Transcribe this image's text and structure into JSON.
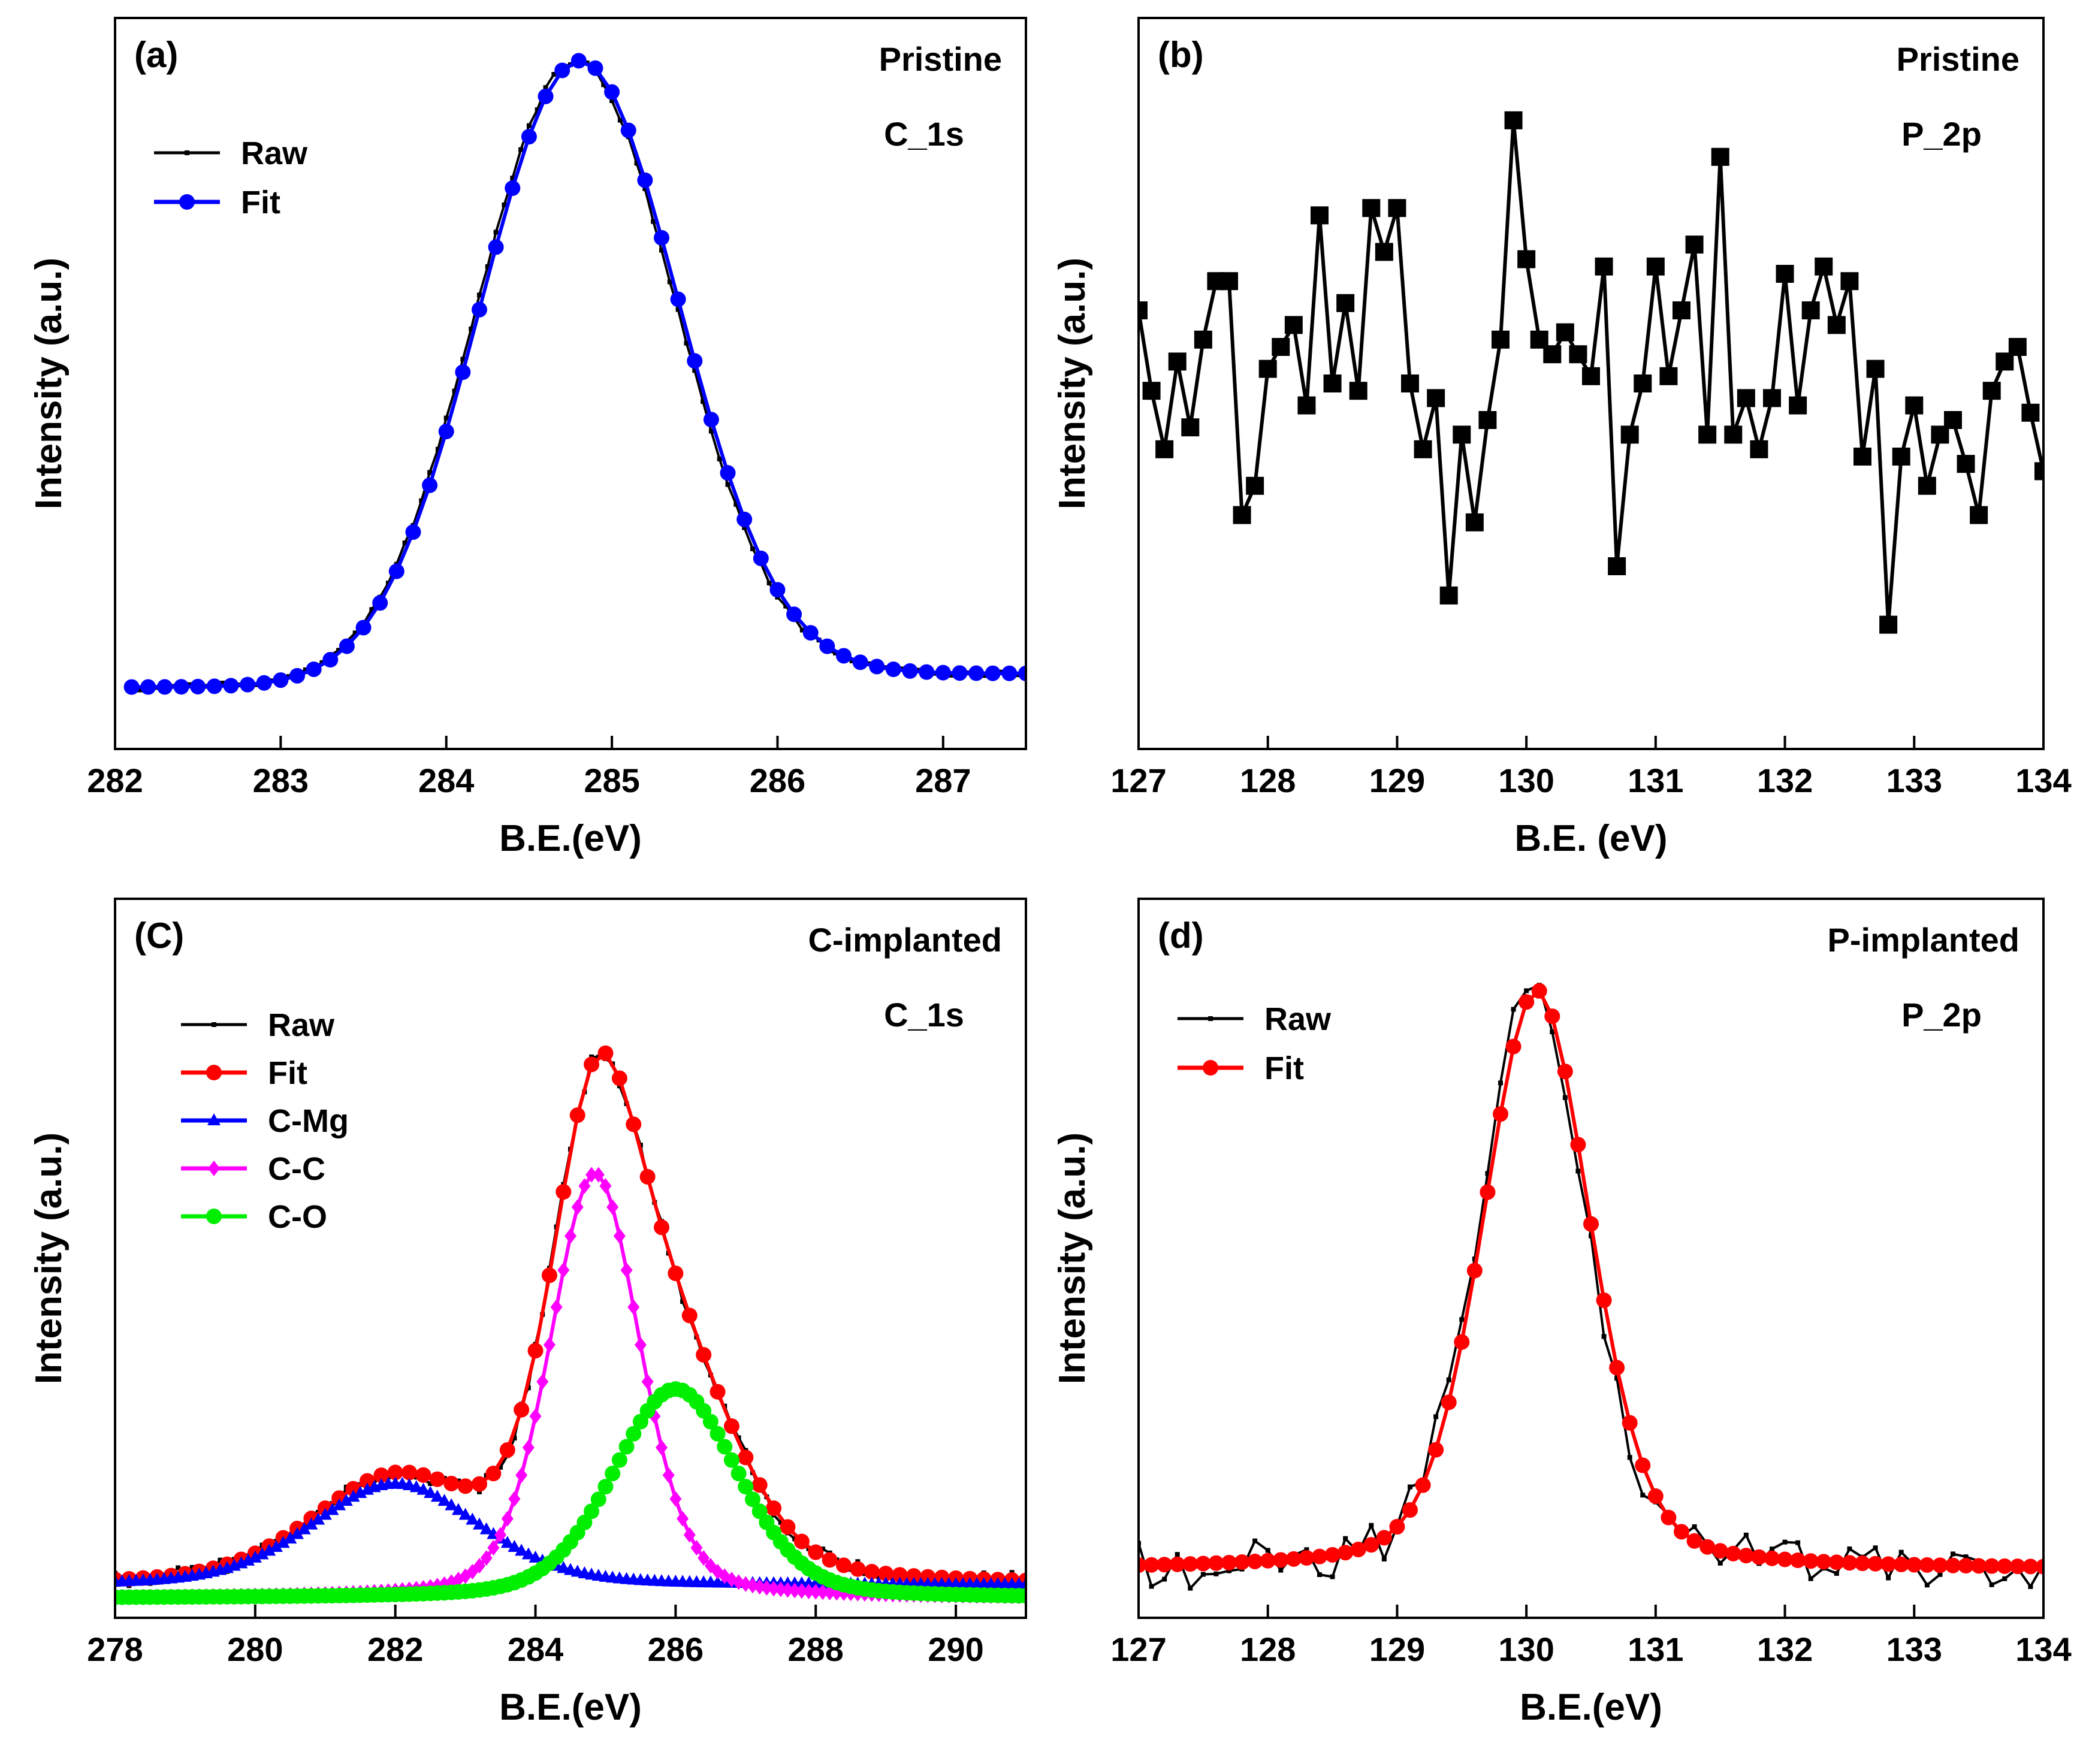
{
  "figure": {
    "background": "#ffffff"
  },
  "chart_data": [
    {
      "id": "a",
      "type": "line",
      "panel_label": "(a)",
      "annotations": [
        "Pristine",
        "C_1s"
      ],
      "xlabel": "B.E.(eV)",
      "ylabel": "Intensity (a.u.)",
      "xlim": [
        282.0,
        287.5
      ],
      "ylim": [
        -0.1,
        1.08
      ],
      "xticks": [
        282,
        283,
        284,
        285,
        286,
        287
      ],
      "xtick_labels": [
        "282",
        "283",
        "284",
        "285",
        "286",
        "287"
      ],
      "y_tick_labels": false,
      "legend": {
        "position": "top-left",
        "entries": [
          "Raw",
          "Fit"
        ]
      },
      "series": [
        {
          "name": "Raw",
          "color": "#000000",
          "marker": "small-square",
          "generator": "gauss",
          "params": {
            "center": 284.78,
            "sigma": 0.6,
            "amp": 1.0,
            "base": 0.0,
            "base_slope": 0.022
          },
          "noise": 0.005,
          "x_start": 282.1,
          "x_end": 287.5,
          "step": 0.05
        },
        {
          "name": "Fit",
          "color": "#0000ff",
          "marker": "circle",
          "generator": "gauss",
          "params": {
            "center": 284.8,
            "sigma": 0.6,
            "amp": 1.0,
            "base": 0.0,
            "base_slope": 0.022
          },
          "x_start": 282.1,
          "x_end": 287.5,
          "step": 0.1
        }
      ]
    },
    {
      "id": "b",
      "type": "line",
      "panel_label": "(b)",
      "annotations": [
        "Pristine",
        "P_2p"
      ],
      "xlabel": "B.E. (eV)",
      "ylabel": "Intensity (a.u.)",
      "xlim": [
        127,
        134
      ],
      "ylim": [
        0,
        1
      ],
      "xticks": [
        127,
        128,
        129,
        130,
        131,
        132,
        133,
        134
      ],
      "xtick_labels": [
        "127",
        "128",
        "129",
        "130",
        "131",
        "132",
        "133",
        "134"
      ],
      "y_tick_labels": false,
      "series": [
        {
          "name": "P_2p",
          "color": "#000000",
          "marker": "square",
          "x_start": 127.0,
          "step": 0.1,
          "values": [
            0.6,
            0.49,
            0.41,
            0.53,
            0.44,
            0.56,
            0.64,
            0.64,
            0.32,
            0.36,
            0.52,
            0.55,
            0.58,
            0.47,
            0.73,
            0.5,
            0.61,
            0.49,
            0.74,
            0.68,
            0.74,
            0.5,
            0.41,
            0.48,
            0.21,
            0.43,
            0.31,
            0.45,
            0.56,
            0.86,
            0.67,
            0.56,
            0.54,
            0.57,
            0.54,
            0.51,
            0.66,
            0.25,
            0.43,
            0.5,
            0.66,
            0.51,
            0.6,
            0.69,
            0.43,
            0.81,
            0.43,
            0.48,
            0.41,
            0.48,
            0.65,
            0.47,
            0.6,
            0.66,
            0.58,
            0.64,
            0.4,
            0.52,
            0.17,
            0.4,
            0.47,
            0.36,
            0.43,
            0.45,
            0.39,
            0.32,
            0.49,
            0.53,
            0.55,
            0.46,
            0.38
          ]
        }
      ]
    },
    {
      "id": "c",
      "type": "line",
      "panel_label": "(C)",
      "annotations": [
        "C-implanted",
        "C_1s"
      ],
      "xlabel": "B.E.(eV)",
      "ylabel": "Intensity (a.u.)",
      "xlim": [
        278,
        291
      ],
      "ylim": [
        -0.02,
        1.08
      ],
      "xticks": [
        278,
        280,
        282,
        284,
        286,
        288,
        290
      ],
      "xtick_labels": [
        "278",
        "280",
        "282",
        "284",
        "286",
        "288",
        "290"
      ],
      "y_tick_labels": false,
      "legend": {
        "position": "top-left",
        "entries": [
          "Raw",
          "Fit",
          "C-Mg",
          "C-C",
          "C-O"
        ]
      },
      "series": [
        {
          "name": "Raw",
          "color": "#000000",
          "marker": "small-square",
          "generator": "sum",
          "components": [
            "C-Mg",
            "C-C",
            "C-O"
          ],
          "noise": 0.012,
          "x_start": 278.0,
          "x_end": 291.0,
          "step": 0.1
        },
        {
          "name": "Fit",
          "color": "#ff0000",
          "marker": "circle",
          "generator": "sum",
          "components": [
            "C-Mg",
            "C-C",
            "C-O"
          ],
          "x_start": 278.0,
          "x_end": 291.0,
          "step": 0.2
        },
        {
          "name": "C-Mg",
          "color": "#0000ff",
          "marker": "triangle",
          "generator": "voigt",
          "params": {
            "center": 282.0,
            "sigma": 1.2,
            "amp": 0.155,
            "base": 0.03
          },
          "x_start": 278.0,
          "x_end": 291.0,
          "step": 0.1
        },
        {
          "name": "C-C",
          "color": "#ff00ff",
          "marker": "diamond",
          "generator": "voigt",
          "params": {
            "center": 284.85,
            "sigma": 0.65,
            "amp": 0.65,
            "base": 0.01
          },
          "x_start": 278.0,
          "x_end": 291.0,
          "step": 0.1
        },
        {
          "name": "C-O",
          "color": "#00ee00",
          "marker": "circle",
          "generator": "voigt",
          "params": {
            "center": 286.0,
            "sigma": 0.9,
            "amp": 0.32,
            "base": 0.01
          },
          "x_start": 278.0,
          "x_end": 291.0,
          "step": 0.1
        }
      ]
    },
    {
      "id": "d",
      "type": "line",
      "panel_label": "(d)",
      "annotations": [
        "P-implanted",
        "P_2p"
      ],
      "xlabel": "B.E.(eV)",
      "ylabel": "Intensity (a.u.)",
      "xlim": [
        127,
        134
      ],
      "ylim": [
        -0.08,
        1.1
      ],
      "xticks": [
        127,
        128,
        129,
        130,
        131,
        132,
        133,
        134
      ],
      "xtick_labels": [
        "127",
        "128",
        "129",
        "130",
        "131",
        "132",
        "133",
        "134"
      ],
      "y_tick_labels": false,
      "legend": {
        "position": "top-left",
        "entries": [
          "Raw",
          "Fit"
        ]
      },
      "series": [
        {
          "name": "Raw",
          "color": "#000000",
          "marker": "small-square",
          "generator": "voigt",
          "params": {
            "center": 130.05,
            "sigma": 0.42,
            "amp": 0.95,
            "base": 0.0
          },
          "noise": 0.04,
          "x_start": 127.0,
          "x_end": 134.0,
          "step": 0.1
        },
        {
          "name": "Fit",
          "color": "#ff0000",
          "marker": "circle",
          "generator": "voigt",
          "params": {
            "center": 130.08,
            "sigma": 0.42,
            "amp": 0.95,
            "base": 0.0
          },
          "x_start": 127.0,
          "x_end": 134.0,
          "step": 0.1
        }
      ]
    }
  ]
}
